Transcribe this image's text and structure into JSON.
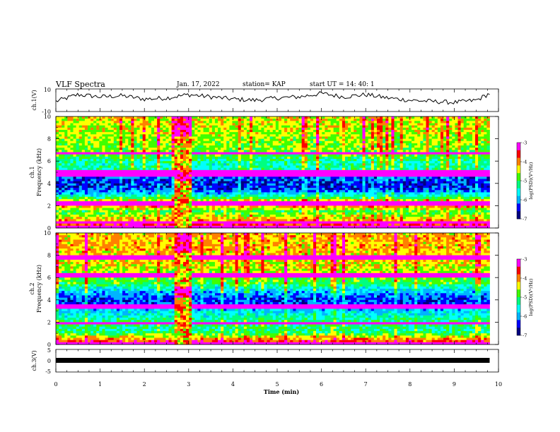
{
  "header": {
    "title": "VLF Spectra",
    "date": "Jan. 17, 2022",
    "station": "station= KAP",
    "start": "start  UT =  14: 40: 1"
  },
  "chart_data": [
    {
      "type": "line",
      "panel": "ch1-waveform",
      "ylabel": "ch.1(V)",
      "ylim": [
        -10,
        10
      ],
      "y_ticks": [
        "10",
        "-10"
      ],
      "xlim": [
        0,
        10
      ],
      "x_unit": "min",
      "series": [
        {
          "x": [
            0,
            0.5,
            1,
            1.5,
            2,
            2.5,
            3,
            3.5,
            4,
            4.5,
            5,
            5.5,
            6,
            6.5,
            7,
            7.5,
            8,
            8.5,
            9,
            9.5,
            9.8
          ],
          "y": [
            -1,
            5,
            3,
            4,
            1,
            2,
            5,
            3,
            1,
            0,
            2,
            3,
            6,
            3,
            5,
            2,
            0,
            -1,
            -2,
            0,
            6
          ]
        }
      ]
    },
    {
      "type": "heatmap",
      "panel": "ch1-spectrogram",
      "ylabel": "ch.1\nFrequency (kHz)",
      "ylim": [
        0,
        10
      ],
      "y_ticks": [
        "0",
        "2",
        "4",
        "6",
        "8",
        "10"
      ],
      "xlim": [
        0,
        10
      ],
      "x_end": 9.8,
      "colorbar": {
        "label": "log(PSD)(V²/Hz)",
        "range": [
          -7,
          -3
        ],
        "ticks": [
          "-3",
          "-4",
          "-5",
          "-6",
          "-7"
        ]
      },
      "profile": [
        {
          "f": 0.2,
          "v": -3.6
        },
        {
          "f": 1.5,
          "v": -5.0
        },
        {
          "f": 2.2,
          "v": -3.6
        },
        {
          "f": 2.8,
          "v": -5.3
        },
        {
          "f": 3.4,
          "v": -6.3
        },
        {
          "f": 4.0,
          "v": -6.5
        },
        {
          "f": 4.6,
          "v": -6.2
        },
        {
          "f": 5.2,
          "v": -5.3
        },
        {
          "f": 5.8,
          "v": -5.4
        },
        {
          "f": 6.5,
          "v": -4.9
        },
        {
          "f": 7.2,
          "v": -4.7
        },
        {
          "f": 8.0,
          "v": -4.6
        },
        {
          "f": 9.0,
          "v": -4.5
        },
        {
          "f": 10.0,
          "v": -4.4
        }
      ],
      "lines_khz": [
        0.1,
        0.55,
        2.1,
        2.35,
        4.65,
        4.9,
        5.1,
        6.7
      ],
      "burst_min": [
        2.65,
        3.05
      ]
    },
    {
      "type": "heatmap",
      "panel": "ch2-spectrogram",
      "ylabel": "ch.2\nFrequency (kHz)",
      "ylim": [
        0,
        10
      ],
      "y_ticks": [
        "0",
        "2",
        "4",
        "6",
        "8",
        "10"
      ],
      "xlim": [
        0,
        10
      ],
      "x_end": 9.8,
      "colorbar": {
        "label": "log(PSD)(V²/Hz)",
        "range": [
          -7,
          -3
        ],
        "ticks": [
          "-3",
          "-4",
          "-5",
          "-6",
          "-7"
        ]
      },
      "profile": [
        {
          "f": 0.2,
          "v": -3.6
        },
        {
          "f": 1.2,
          "v": -5.3
        },
        {
          "f": 2.0,
          "v": -5.1
        },
        {
          "f": 3.0,
          "v": -5.8
        },
        {
          "f": 4.0,
          "v": -6.4
        },
        {
          "f": 4.8,
          "v": -5.8
        },
        {
          "f": 5.5,
          "v": -5.0
        },
        {
          "f": 6.5,
          "v": -4.6
        },
        {
          "f": 7.5,
          "v": -4.3
        },
        {
          "f": 8.5,
          "v": -4.2
        },
        {
          "f": 10.0,
          "v": -4.2
        }
      ],
      "lines_khz": [
        0.15,
        1.95,
        3.4,
        6.2,
        7.8
      ],
      "burst_min": [
        2.65,
        3.05
      ]
    },
    {
      "type": "line",
      "panel": "ch3-waveform",
      "ylabel": "ch.3(V)",
      "ylim": [
        -5,
        5
      ],
      "y_ticks": [
        "5",
        "0",
        "-5"
      ],
      "xlim": [
        0,
        10
      ],
      "xlabel": "Time  (min)",
      "x_ticks": [
        "0",
        "1",
        "2",
        "3",
        "4",
        "5",
        "6",
        "7",
        "8",
        "9",
        "10"
      ],
      "series": [
        {
          "x": [
            0,
            9.8
          ],
          "y": [
            0,
            0
          ],
          "band": 0.9
        }
      ]
    }
  ],
  "colors": {
    "colormap": [
      "#000080",
      "#0000ff",
      "#00b4ff",
      "#00ffff",
      "#00ff80",
      "#40ff00",
      "#ffff00",
      "#ff8000",
      "#ff0000",
      "#ff00ff"
    ],
    "line": "#000000",
    "background": "#ffffff"
  }
}
